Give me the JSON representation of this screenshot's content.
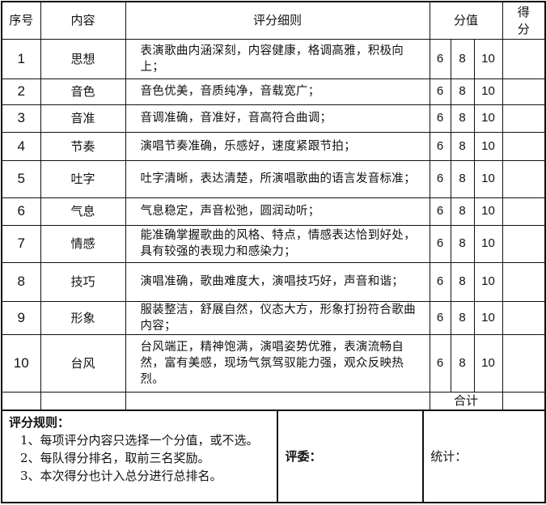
{
  "header": {
    "seq": "序号",
    "content": "内容",
    "criteria": "评分细则",
    "values": "分值",
    "score": "得分"
  },
  "rows": [
    {
      "no": "1",
      "item": "思想",
      "criteria": "表演歌曲内涵深刻，内容健康，格调高雅，积极向上；",
      "v1": "6",
      "v2": "8",
      "v3": "10"
    },
    {
      "no": "2",
      "item": "音色",
      "criteria": "音色优美，音质纯净，音载宽广；",
      "v1": "6",
      "v2": "8",
      "v3": "10"
    },
    {
      "no": "3",
      "item": "音准",
      "criteria": "音调准确，音准好，音高符合曲调；",
      "v1": "6",
      "v2": "8",
      "v3": "10"
    },
    {
      "no": "4",
      "item": "节奏",
      "criteria": "演唱节奏准确，乐感好，速度紧跟节拍；",
      "v1": "6",
      "v2": "8",
      "v3": "10"
    },
    {
      "no": "5",
      "item": "吐字",
      "criteria": "吐字清晰，表达清楚，所演唱歌曲的语言发音标准；",
      "v1": "6",
      "v2": "8",
      "v3": "10"
    },
    {
      "no": "6",
      "item": "气息",
      "criteria": "气息稳定，声音松弛，圆润动听；",
      "v1": "6",
      "v2": "8",
      "v3": "10"
    },
    {
      "no": "7",
      "item": "情感",
      "criteria": "能准确掌握歌曲的风格、特点，情感表达恰到好处，具有较强的表现力和感染力；",
      "v1": "6",
      "v2": "8",
      "v3": "10"
    },
    {
      "no": "8",
      "item": "技巧",
      "criteria": "演唱准确，歌曲难度大，演唱技巧好，声音和谐；",
      "v1": "6",
      "v2": "8",
      "v3": "10"
    },
    {
      "no": "9",
      "item": "形象",
      "criteria": "服装整洁，舒展自然，仪态大方，形象打扮符合歌曲内容；",
      "v1": "6",
      "v2": "8",
      "v3": "10"
    },
    {
      "no": "10",
      "item": "台风",
      "criteria": "台风端正，精神饱满，演唱姿势优雅，表演流畅自然，富有美感，现场气氛驾驭能力强，观众反映热烈。",
      "v1": "6",
      "v2": "8",
      "v3": "10"
    }
  ],
  "total_label": "合计",
  "footer": {
    "rules_title": "评分规则：",
    "rules": [
      "1、每项评分内容只选择一个分值，或不选。",
      "2、每队得分排名，取前三名奖励。",
      "3、本次得分也计入总分进行总排名。"
    ],
    "judge_label": "评委：",
    "stat_label": "统计："
  }
}
